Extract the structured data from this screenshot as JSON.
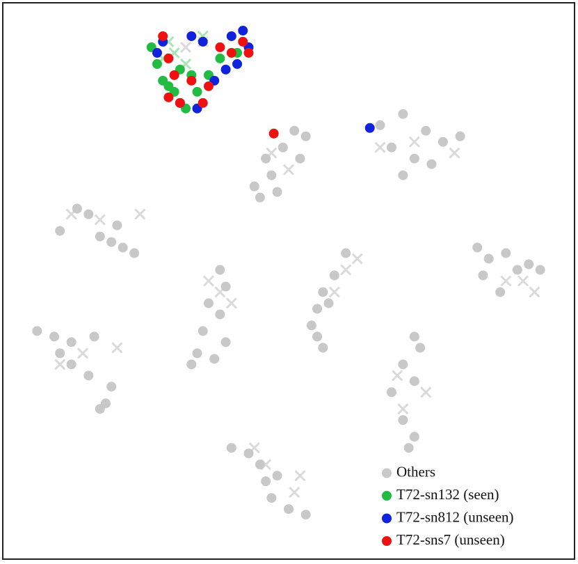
{
  "chart_data": {
    "type": "scatter",
    "xlim": [
      0,
      100
    ],
    "ylim": [
      0,
      100
    ],
    "legend": "lower right",
    "series": [
      {
        "marker": "x",
        "color": "#dadada",
        "x": [
          50,
          47,
          72,
          66,
          79,
          12,
          17,
          24,
          91,
          93,
          88,
          40,
          38,
          36,
          60,
          58,
          62,
          10,
          14,
          20,
          69,
          74,
          70,
          46,
          51,
          52,
          44,
          32,
          35
        ],
        "y": [
          70,
          73,
          75,
          74,
          73,
          62,
          61,
          62,
          50,
          48,
          50,
          46,
          48,
          50,
          52,
          48,
          54,
          35,
          37,
          38,
          33,
          30,
          27,
          17,
          12,
          15,
          20,
          92,
          93
        ]
      },
      {
        "marker": "x",
        "color": "#a8e6b4",
        "x": [
          29,
          30,
          35,
          28,
          32
        ],
        "y": [
          93,
          91,
          94,
          90,
          89
        ]
      },
      {
        "name": "Others",
        "marker": "o",
        "color": "#c8c8c8",
        "x": [
          51,
          53,
          49,
          46,
          47,
          44,
          45,
          48,
          52,
          66,
          70,
          74,
          77,
          80,
          68,
          72,
          70,
          75,
          10,
          15,
          20,
          19,
          21,
          23,
          17,
          13,
          83,
          85,
          88,
          90,
          92,
          84,
          87,
          94,
          38,
          39,
          36,
          38,
          35,
          39,
          34,
          33,
          37,
          60,
          58,
          56,
          55,
          54,
          55,
          56,
          57,
          6,
          9,
          12,
          16,
          12,
          15,
          19,
          18,
          17,
          10,
          72,
          73,
          70,
          72,
          68,
          70,
          72,
          71,
          40,
          43,
          45,
          46,
          47,
          50,
          53,
          48
        ],
        "y": [
          77,
          76,
          74,
          72,
          69,
          67,
          65,
          66,
          72,
          78,
          80,
          77,
          75,
          76,
          74,
          72,
          69,
          71,
          59,
          62,
          60,
          57,
          56,
          55,
          58,
          63,
          56,
          54,
          55,
          52,
          53,
          51,
          48,
          52,
          52,
          49,
          46,
          44,
          41,
          39,
          37,
          35,
          36,
          55,
          51,
          48,
          45,
          42,
          40,
          38,
          46,
          41,
          40,
          39,
          40,
          35,
          33,
          31,
          28,
          27,
          37,
          40,
          38,
          35,
          32,
          30,
          25,
          22,
          20,
          20,
          19,
          17,
          14,
          11,
          9,
          8,
          15
        ]
      },
      {
        "name": "T72-sn132 (seen)",
        "marker": "o",
        "color": "#22bb44",
        "x": [
          27,
          28,
          31,
          33,
          30,
          34,
          32,
          38,
          41,
          36,
          26,
          29
        ],
        "y": [
          89,
          86,
          88,
          87,
          84,
          84,
          81,
          90,
          91,
          87,
          92,
          85
        ]
      },
      {
        "name": "T72-sn812 (unseen)",
        "marker": "o",
        "color": "#1122dd",
        "x": [
          28,
          33,
          40,
          42,
          39,
          41,
          37,
          34,
          31,
          35,
          27,
          43,
          64.2
        ],
        "y": [
          93,
          94,
          94,
          95,
          88,
          89,
          86,
          81,
          82,
          93,
          91,
          92,
          77.5
        ]
      },
      {
        "name": "T72-sns7 (unseen)",
        "marker": "o",
        "color": "#ee1111",
        "x": [
          28,
          29,
          30,
          29,
          31,
          35,
          36,
          40,
          42,
          43,
          38,
          33,
          47.4
        ],
        "y": [
          94,
          90,
          87,
          83,
          82,
          82,
          85,
          91,
          93,
          91,
          92,
          86,
          76.5
        ]
      }
    ]
  }
}
